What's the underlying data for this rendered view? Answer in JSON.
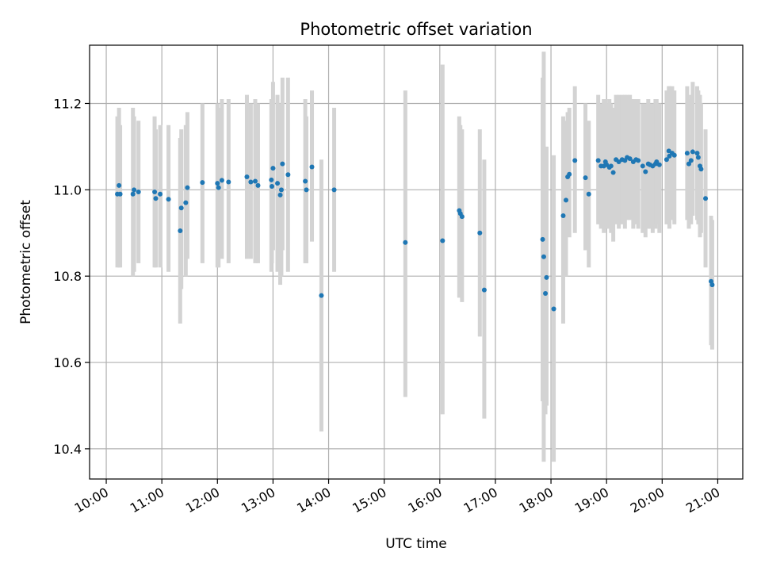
{
  "chart_data": {
    "type": "scatter",
    "title": "Photometric offset variation",
    "xlabel": "UTC time",
    "ylabel": "Photometric offset",
    "x_unit": "UTC time (hours)",
    "xlim": [
      9.7,
      21.45
    ],
    "ylim": [
      10.33,
      11.335
    ],
    "x_ticks": [
      10,
      11,
      12,
      13,
      14,
      15,
      16,
      17,
      18,
      19,
      20,
      21
    ],
    "x_tick_labels": [
      "10:00",
      "11:00",
      "12:00",
      "13:00",
      "14:00",
      "15:00",
      "16:00",
      "17:00",
      "18:00",
      "19:00",
      "20:00",
      "21:00"
    ],
    "y_ticks": [
      10.4,
      10.6,
      10.8,
      11.0,
      11.2
    ],
    "y_tick_labels": [
      "10.4",
      "10.6",
      "10.8",
      "11.0",
      "11.2"
    ],
    "grid": true,
    "colors": {
      "points": "#1f77b4",
      "errorbars": "#d3d3d3",
      "grid": "#b0b0b0"
    },
    "series": [
      {
        "x": [
          10.2,
          10.23,
          10.25,
          10.48,
          10.5,
          10.58,
          10.87,
          10.89,
          10.97,
          11.12,
          11.33,
          11.35,
          11.43,
          11.46,
          11.73,
          12.0,
          12.02,
          12.08,
          12.2,
          12.53,
          12.6,
          12.68,
          12.73,
          12.97,
          12.98,
          13.0,
          13.08,
          13.13,
          13.15,
          13.17,
          13.27,
          13.58,
          13.6,
          13.7,
          13.87,
          14.1,
          15.38,
          16.05,
          16.35,
          16.37,
          16.4,
          16.72,
          16.8,
          17.85,
          17.87,
          17.9,
          17.92,
          18.05,
          18.22,
          18.27,
          18.3,
          18.33,
          18.43,
          18.62,
          18.68,
          18.85,
          18.9,
          18.95,
          18.98,
          19.0,
          19.05,
          19.08,
          19.12,
          19.17,
          19.22,
          19.28,
          19.33,
          19.37,
          19.42,
          19.48,
          19.53,
          19.57,
          19.65,
          19.7,
          19.75,
          19.78,
          19.83,
          19.88,
          19.9,
          19.95,
          20.08,
          20.12,
          20.13,
          20.18,
          20.22,
          20.45,
          20.48,
          20.52,
          20.55,
          20.63,
          20.65,
          20.68,
          20.7,
          20.78,
          20.88,
          20.9
        ],
        "y": [
          10.99,
          11.01,
          10.99,
          10.99,
          11.0,
          10.995,
          10.995,
          10.98,
          10.99,
          10.978,
          10.905,
          10.958,
          10.97,
          11.005,
          11.017,
          11.015,
          11.005,
          11.022,
          11.018,
          11.03,
          11.018,
          11.02,
          11.01,
          11.023,
          11.008,
          11.05,
          11.015,
          10.988,
          11.0,
          11.06,
          11.035,
          11.02,
          11.0,
          11.053,
          10.755,
          11.0,
          10.878,
          10.882,
          10.952,
          10.945,
          10.938,
          10.9,
          10.768,
          10.885,
          10.845,
          10.76,
          10.797,
          10.724,
          10.94,
          10.976,
          11.03,
          11.036,
          11.068,
          11.028,
          10.99,
          11.068,
          11.055,
          11.055,
          11.065,
          11.058,
          11.052,
          11.055,
          11.04,
          11.07,
          11.065,
          11.07,
          11.068,
          11.075,
          11.072,
          11.065,
          11.07,
          11.068,
          11.055,
          11.042,
          11.06,
          11.058,
          11.055,
          11.06,
          11.065,
          11.058,
          11.07,
          11.09,
          11.078,
          11.085,
          11.08,
          11.085,
          11.06,
          11.068,
          11.088,
          11.085,
          11.075,
          11.055,
          11.048,
          10.98,
          10.788,
          10.78
        ],
        "y_low": [
          10.82,
          10.82,
          10.82,
          10.8,
          10.81,
          10.83,
          10.82,
          10.82,
          10.82,
          10.81,
          10.69,
          10.77,
          10.8,
          10.84,
          10.83,
          10.82,
          10.82,
          10.84,
          10.83,
          10.84,
          10.84,
          10.83,
          10.83,
          10.81,
          10.83,
          10.86,
          10.81,
          10.78,
          10.8,
          10.86,
          10.81,
          10.83,
          10.83,
          10.88,
          10.44,
          10.81,
          10.52,
          10.48,
          10.75,
          10.83,
          10.74,
          10.66,
          10.47,
          10.51,
          10.37,
          10.48,
          10.5,
          10.37,
          10.69,
          10.8,
          10.9,
          10.89,
          10.9,
          10.86,
          10.82,
          10.92,
          10.91,
          10.9,
          10.92,
          10.91,
          10.91,
          10.9,
          10.88,
          10.92,
          10.91,
          10.92,
          10.91,
          10.93,
          10.93,
          10.91,
          10.92,
          10.91,
          10.9,
          10.89,
          10.91,
          10.91,
          10.9,
          10.91,
          10.92,
          10.9,
          10.92,
          10.92,
          10.91,
          10.93,
          10.92,
          10.93,
          10.91,
          10.92,
          10.94,
          10.93,
          10.92,
          10.89,
          10.9,
          10.82,
          10.64,
          10.63
        ],
        "y_high": [
          11.17,
          11.19,
          11.15,
          11.19,
          11.17,
          11.16,
          11.17,
          11.14,
          11.15,
          11.15,
          11.12,
          11.14,
          11.15,
          11.18,
          11.2,
          11.2,
          11.19,
          11.21,
          11.21,
          11.22,
          11.2,
          11.21,
          11.2,
          11.21,
          11.19,
          11.25,
          11.22,
          11.19,
          11.2,
          11.26,
          11.26,
          11.21,
          11.17,
          11.23,
          11.07,
          11.19,
          11.23,
          11.29,
          11.17,
          11.15,
          11.14,
          11.14,
          11.07,
          11.26,
          11.32,
          11.04,
          11.1,
          11.08,
          11.17,
          11.16,
          11.18,
          11.19,
          11.24,
          11.2,
          11.16,
          11.22,
          11.2,
          11.21,
          11.21,
          11.2,
          11.21,
          11.2,
          11.19,
          11.22,
          11.22,
          11.22,
          11.22,
          11.22,
          11.22,
          11.21,
          11.21,
          11.21,
          11.2,
          11.2,
          11.21,
          11.2,
          11.2,
          11.21,
          11.21,
          11.2,
          11.23,
          11.24,
          11.24,
          11.24,
          11.23,
          11.24,
          11.21,
          11.22,
          11.25,
          11.24,
          11.23,
          11.22,
          11.2,
          11.14,
          10.94,
          10.93
        ]
      }
    ]
  }
}
